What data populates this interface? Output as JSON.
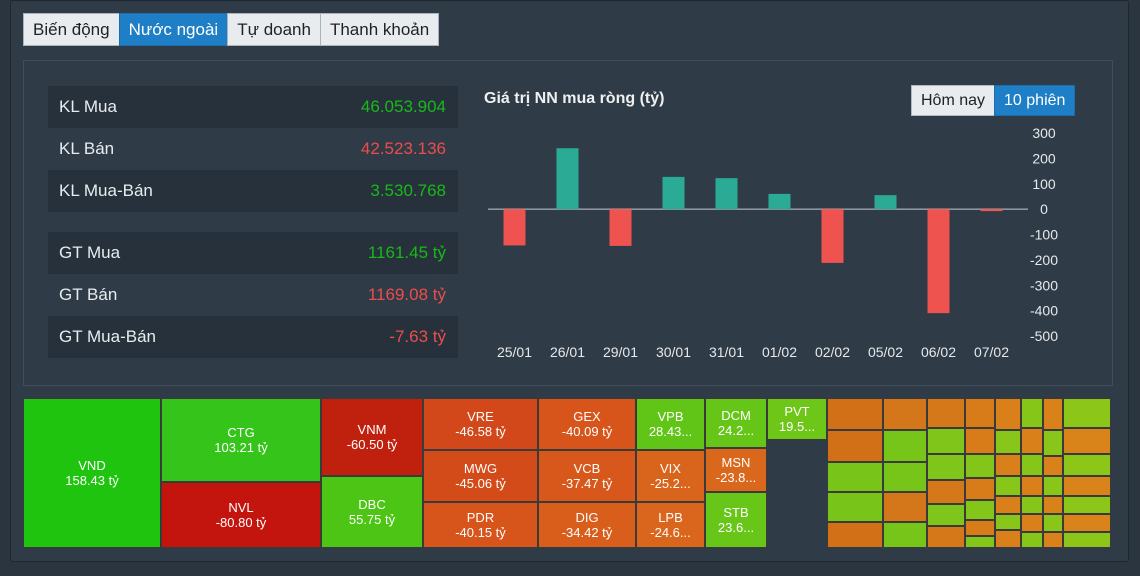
{
  "tabs": [
    "Biến động",
    "Nước ngoài",
    "Tự doanh",
    "Thanh khoản"
  ],
  "active_tab": 1,
  "stats": [
    {
      "label": "KL Mua",
      "value": "46.053.904",
      "tone": "pos"
    },
    {
      "label": "KL Bán",
      "value": "42.523.136",
      "tone": "neg"
    },
    {
      "label": "KL Mua-Bán",
      "value": "3.530.768",
      "tone": "pos"
    },
    {
      "label": "GT Mua",
      "value": "1161.45 tỷ",
      "tone": "pos"
    },
    {
      "label": "GT Bán",
      "value": "1169.08 tỷ",
      "tone": "neg"
    },
    {
      "label": "GT Mua-Bán",
      "value": "-7.63 tỷ",
      "tone": "neg"
    }
  ],
  "range_toggle": {
    "options": [
      "Hôm nay",
      "10 phiên"
    ],
    "active": 1
  },
  "colors": {
    "positive_bar": "#2bab96",
    "negative_bar": "#ef5350",
    "treemap_green": "#33cc1a",
    "treemap_red": "#c8160d",
    "treemap_orange": "#e0561a"
  },
  "chart_data": {
    "type": "bar",
    "title": "Giá trị NN mua ròng (tỷ)",
    "categories": [
      "25/01",
      "26/01",
      "29/01",
      "30/01",
      "31/01",
      "01/02",
      "02/02",
      "05/02",
      "06/02",
      "07/02"
    ],
    "values": [
      -143,
      240,
      -145,
      127,
      122,
      60,
      -212,
      55,
      -410,
      -8
    ],
    "ylim": [
      -500,
      300
    ],
    "yticks": [
      "300",
      "200",
      "100",
      "0",
      "-100",
      "-200",
      "-300",
      "-400",
      "-500"
    ],
    "grid": false
  },
  "treemap": [
    {
      "name": "VND",
      "value": "158.43 tỷ",
      "color": "#1fc40f"
    },
    {
      "name": "CTG",
      "value": "103.21 tỷ",
      "color": "#35c51a"
    },
    {
      "name": "NVL",
      "value": "-80.80 tỷ",
      "color": "#c4140e"
    },
    {
      "name": "VNM",
      "value": "-60.50 tỷ",
      "color": "#c0210e"
    },
    {
      "name": "DBC",
      "value": "55.75 tỷ",
      "color": "#4cc515"
    },
    {
      "name": "VRE",
      "value": "-46.58 tỷ",
      "color": "#d2481a"
    },
    {
      "name": "MWG",
      "value": "-45.06 tỷ",
      "color": "#d44b1a"
    },
    {
      "name": "PDR",
      "value": "-40.15 tỷ",
      "color": "#d7541b"
    },
    {
      "name": "GEX",
      "value": "-40.09 tỷ",
      "color": "#d7541b"
    },
    {
      "name": "VCB",
      "value": "-37.47 tỷ",
      "color": "#d8581c"
    },
    {
      "name": "DIG",
      "value": "-34.42 tỷ",
      "color": "#d95e1c"
    },
    {
      "name": "VPB",
      "value": "28.43...",
      "color": "#60c516"
    },
    {
      "name": "VIX",
      "value": "-25.2...",
      "color": "#d9641c"
    },
    {
      "name": "LPB",
      "value": "-24.6...",
      "color": "#d9661c"
    },
    {
      "name": "DCM",
      "value": "24.2...",
      "color": "#66c618"
    },
    {
      "name": "MSN",
      "value": "-23.8...",
      "color": "#d9681c"
    },
    {
      "name": "STB",
      "value": "23.6...",
      "color": "#68c618"
    },
    {
      "name": "PVT",
      "value": "19.5...",
      "color": "#6ec618"
    }
  ]
}
